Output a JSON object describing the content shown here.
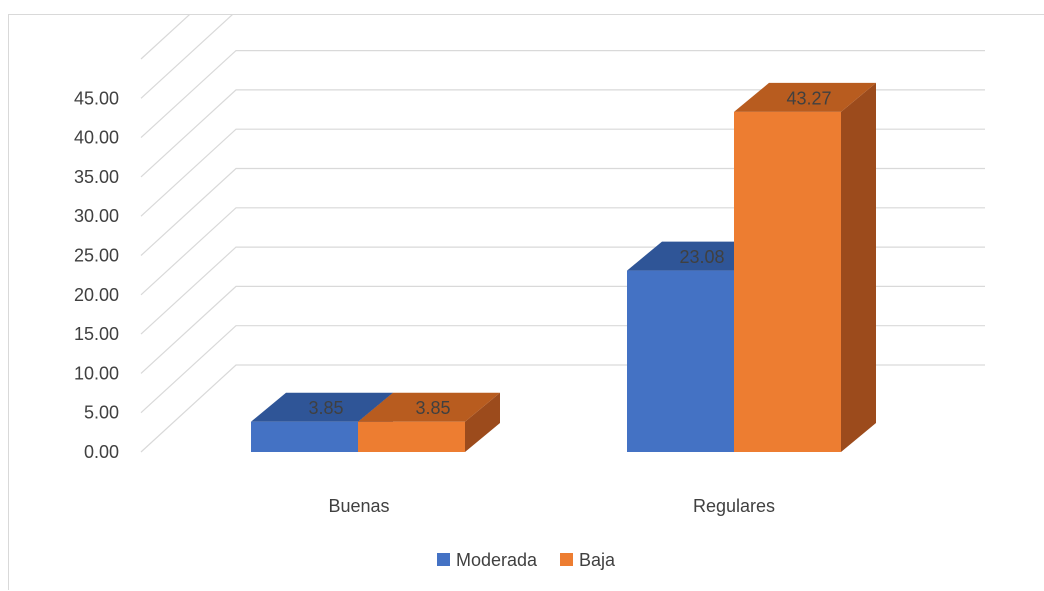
{
  "chart_data": {
    "type": "bar",
    "categories": [
      "Buenas",
      "Regulares"
    ],
    "series": [
      {
        "name": "Moderada",
        "values": [
          3.85,
          23.08
        ],
        "labels": [
          "3.85",
          "23.08"
        ]
      },
      {
        "name": "Baja",
        "values": [
          3.85,
          43.27
        ],
        "labels": [
          "3.85",
          "43.27"
        ]
      }
    ],
    "yticks": [
      "0.00",
      "5.00",
      "10.00",
      "15.00",
      "20.00",
      "25.00",
      "30.00",
      "35.00",
      "40.00",
      "45.00"
    ],
    "ylim": [
      0,
      45
    ],
    "grid": true,
    "legend_position": "bottom",
    "colors": {
      "Moderada": {
        "front": "#4472c4",
        "top": "#2f5597",
        "side": "#2e4f8f"
      },
      "Baja": {
        "front": "#ed7d31",
        "top": "#b85c1f",
        "side": "#9c4b1c"
      },
      "grid": "#d9d9d9",
      "text": "#404040"
    }
  }
}
